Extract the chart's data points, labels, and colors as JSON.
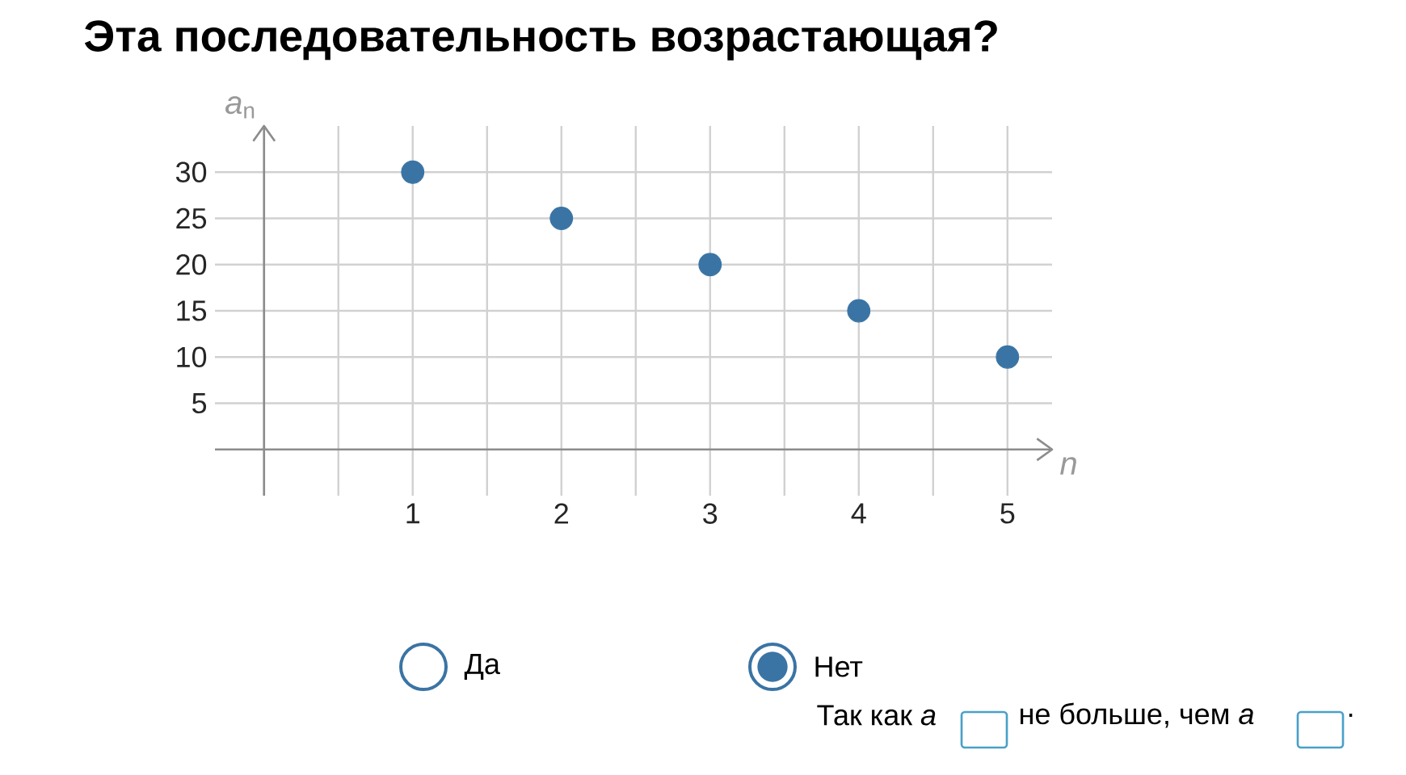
{
  "chart_data": {
    "type": "scatter",
    "title": "Эта последовательность возрастающая?",
    "xlabel": "n",
    "ylabel": "*a*$_{n}$",
    "x": [
      1,
      2,
      3,
      4,
      5
    ],
    "series": [
      {
        "color": "#3a74a4",
        "values": [
          30,
          25,
          20,
          15,
          10
        ]
      }
    ],
    "xlim": [
      -0.33,
      5.3
    ],
    "ylim": [
      -5,
      35
    ],
    "xticks": [
      1,
      2,
      3,
      4,
      5
    ],
    "yticks": [
      5,
      10,
      15,
      20,
      25,
      30
    ],
    "grid": true,
    "marker": "circle",
    "annotations": [
      "Да",
      "Нет",
      "Так как *a*",
      "не больше, чем *a*",
      "."
    ]
  }
}
